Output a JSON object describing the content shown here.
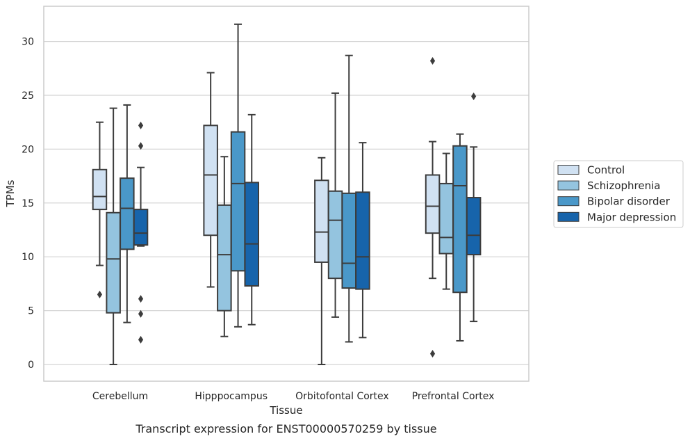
{
  "chart_data": {
    "type": "box",
    "caption": "Transcript expression for ENST00000570259 by tissue",
    "xlabel": "Tissue",
    "ylabel": "TPMs",
    "ylim": [
      -1.5,
      33
    ],
    "yticks": [
      0,
      5,
      10,
      15,
      20,
      25,
      30
    ],
    "grid": "horizontal",
    "legend_position": "right",
    "categories": [
      "Cerebellum",
      "Hipppocampus",
      "Orbitofontal Cortex",
      "Prefrontal Cortex"
    ],
    "series": [
      {
        "name": "Control",
        "color": "#d0e1f2",
        "boxes": [
          {
            "whislo": 9.2,
            "q1": 14.4,
            "med": 15.6,
            "q3": 18.1,
            "whishi": 22.5,
            "fliers": [
              6.5
            ]
          },
          {
            "whislo": 7.2,
            "q1": 12.0,
            "med": 17.6,
            "q3": 22.2,
            "whishi": 27.1,
            "fliers": []
          },
          {
            "whislo": 0.0,
            "q1": 9.5,
            "med": 12.3,
            "q3": 17.1,
            "whishi": 19.2,
            "fliers": []
          },
          {
            "whislo": 8.0,
            "q1": 12.2,
            "med": 14.7,
            "q3": 17.6,
            "whishi": 20.7,
            "fliers": [
              1.0,
              28.2
            ]
          }
        ]
      },
      {
        "name": "Schizophrenia",
        "color": "#94c4df",
        "boxes": [
          {
            "whislo": 0.0,
            "q1": 4.8,
            "med": 9.8,
            "q3": 14.1,
            "whishi": 23.8,
            "fliers": []
          },
          {
            "whislo": 2.6,
            "q1": 5.0,
            "med": 10.2,
            "q3": 14.8,
            "whishi": 19.3,
            "fliers": []
          },
          {
            "whislo": 4.4,
            "q1": 8.0,
            "med": 13.4,
            "q3": 16.1,
            "whishi": 25.2,
            "fliers": []
          },
          {
            "whislo": 7.0,
            "q1": 10.3,
            "med": 11.8,
            "q3": 16.8,
            "whishi": 19.6,
            "fliers": []
          }
        ]
      },
      {
        "name": "Bipolar disorder",
        "color": "#4a98c9",
        "boxes": [
          {
            "whislo": 3.9,
            "q1": 10.7,
            "med": 14.5,
            "q3": 17.3,
            "whishi": 24.1,
            "fliers": []
          },
          {
            "whislo": 3.5,
            "q1": 8.7,
            "med": 16.8,
            "q3": 21.6,
            "whishi": 31.6,
            "fliers": []
          },
          {
            "whislo": 2.1,
            "q1": 7.1,
            "med": 9.4,
            "q3": 15.9,
            "whishi": 28.7,
            "fliers": []
          },
          {
            "whislo": 2.2,
            "q1": 6.7,
            "med": 16.6,
            "q3": 20.3,
            "whishi": 21.4,
            "fliers": []
          }
        ]
      },
      {
        "name": "Major depression",
        "color": "#1764ab",
        "boxes": [
          {
            "whislo": 11.0,
            "q1": 11.1,
            "med": 12.2,
            "q3": 14.4,
            "whishi": 18.3,
            "fliers": [
              2.3,
              4.7,
              6.1,
              20.3,
              22.2
            ]
          },
          {
            "whislo": 3.7,
            "q1": 7.3,
            "med": 11.2,
            "q3": 16.9,
            "whishi": 23.2,
            "fliers": []
          },
          {
            "whislo": 2.5,
            "q1": 7.0,
            "med": 10.0,
            "q3": 16.0,
            "whishi": 20.6,
            "fliers": []
          },
          {
            "whislo": 4.0,
            "q1": 10.2,
            "med": 12.0,
            "q3": 15.5,
            "whishi": 20.2,
            "fliers": [
              24.9
            ]
          }
        ]
      }
    ]
  }
}
